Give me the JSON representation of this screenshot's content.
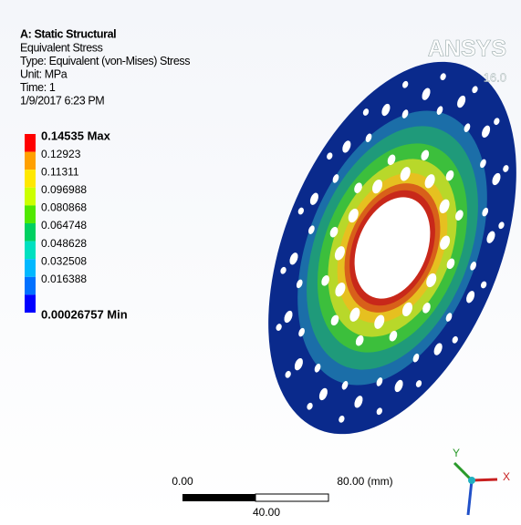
{
  "header": {
    "title": "A: Static Structural",
    "lines": [
      "Equivalent Stress",
      "Type: Equivalent (von-Mises) Stress",
      "Unit: MPa",
      "Time: 1",
      "1/9/2017 6:23 PM"
    ]
  },
  "legend": [
    "0.14535 Max",
    "0.12923",
    "0.11311",
    "0.096988",
    "0.080868",
    "0.064748",
    "0.048628",
    "0.032508",
    "0.016388",
    "0.00026757 Min"
  ],
  "logo": {
    "name": "ANSYS",
    "version": "16.0"
  },
  "scale_bar": {
    "start": "0.00",
    "end": "80.00 (mm)",
    "middle": "40.00"
  },
  "triad": {
    "y": "Y",
    "x": "X"
  }
}
